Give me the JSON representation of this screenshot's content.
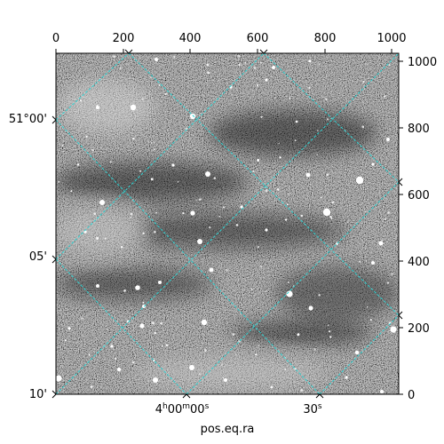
{
  "figure": {
    "xlabel": "pos.eq.ra",
    "top_ticks": [
      "0",
      "200",
      "400",
      "600",
      "800",
      "1000"
    ],
    "right_ticks": [
      "1000",
      "800",
      "600",
      "400",
      "200",
      "0"
    ],
    "dec_ticks": [
      "51°00'",
      "05'",
      "10'"
    ],
    "ra_ticks": [
      {
        "main": "4",
        "sup1": "h",
        "mid": "00",
        "sup2": "m",
        "end": "00",
        "sup3": "s"
      },
      {
        "main": "30",
        "sup1": "s"
      }
    ],
    "grid_color": "#2fd3d3",
    "image_background": "#4a4a4a"
  }
}
